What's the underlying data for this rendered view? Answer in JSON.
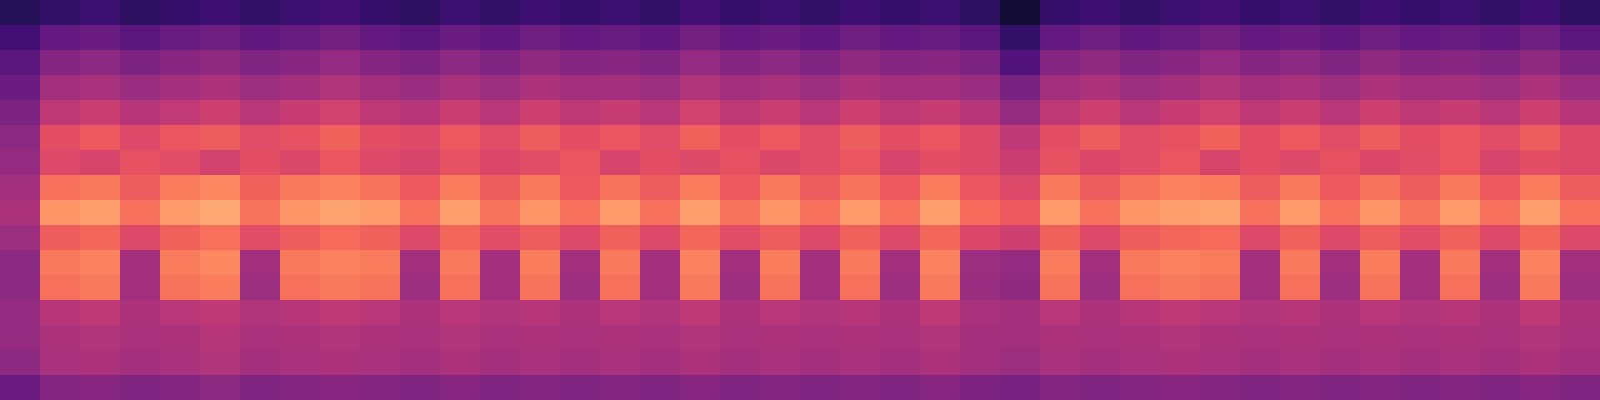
{
  "chart_data": {
    "type": "heatmap",
    "color": "magma",
    "tick_labels": false,
    "zlim": [
      0,
      100
    ],
    "cells": [
      [
        15,
        18,
        20,
        17,
        19,
        21,
        18,
        20,
        22,
        19,
        17,
        20,
        18,
        21,
        19,
        20,
        18,
        22,
        19,
        20,
        18,
        21,
        19,
        20,
        17,
        10,
        19,
        21,
        18,
        20,
        22,
        19,
        20,
        18,
        21,
        19,
        20,
        18,
        21,
        17
      ],
      [
        22,
        30,
        32,
        28,
        31,
        33,
        29,
        31,
        34,
        30,
        28,
        32,
        29,
        33,
        30,
        31,
        29,
        34,
        30,
        32,
        29,
        33,
        30,
        31,
        28,
        18,
        30,
        33,
        29,
        31,
        34,
        30,
        32,
        29,
        33,
        30,
        31,
        29,
        33,
        28
      ],
      [
        28,
        38,
        40,
        36,
        39,
        41,
        37,
        39,
        42,
        38,
        36,
        40,
        37,
        41,
        38,
        39,
        37,
        42,
        38,
        40,
        37,
        41,
        38,
        39,
        36,
        26,
        38,
        41,
        37,
        39,
        42,
        38,
        40,
        37,
        41,
        38,
        39,
        37,
        41,
        36
      ],
      [
        32,
        45,
        47,
        43,
        46,
        48,
        44,
        46,
        49,
        45,
        43,
        47,
        44,
        48,
        45,
        46,
        44,
        49,
        45,
        47,
        44,
        48,
        45,
        46,
        43,
        35,
        45,
        48,
        44,
        46,
        49,
        45,
        47,
        44,
        48,
        45,
        46,
        44,
        48,
        43
      ],
      [
        36,
        52,
        55,
        50,
        53,
        56,
        51,
        54,
        57,
        52,
        50,
        55,
        51,
        56,
        52,
        54,
        51,
        57,
        52,
        55,
        51,
        56,
        52,
        54,
        50,
        42,
        52,
        56,
        51,
        54,
        57,
        52,
        55,
        51,
        56,
        52,
        54,
        51,
        56,
        50
      ],
      [
        40,
        62,
        65,
        60,
        64,
        66,
        61,
        63,
        67,
        62,
        60,
        65,
        61,
        66,
        62,
        64,
        61,
        67,
        62,
        65,
        61,
        66,
        62,
        64,
        60,
        52,
        62,
        66,
        61,
        63,
        67,
        62,
        65,
        61,
        66,
        62,
        64,
        61,
        66,
        60
      ],
      [
        42,
        60,
        58,
        63,
        61,
        57,
        62,
        59,
        64,
        60,
        58,
        63,
        59,
        61,
        64,
        58,
        62,
        60,
        63,
        59,
        61,
        64,
        58,
        62,
        60,
        55,
        63,
        59,
        61,
        64,
        58,
        62,
        60,
        63,
        59,
        61,
        64,
        58,
        62,
        60
      ],
      [
        45,
        70,
        72,
        66,
        73,
        75,
        67,
        72,
        74,
        71,
        65,
        73,
        66,
        72,
        65,
        71,
        66,
        73,
        65,
        72,
        66,
        71,
        65,
        73,
        64,
        60,
        72,
        66,
        71,
        74,
        73,
        66,
        72,
        65,
        71,
        66,
        72,
        65,
        73,
        66
      ],
      [
        48,
        78,
        80,
        70,
        79,
        82,
        71,
        78,
        81,
        79,
        70,
        80,
        71,
        78,
        70,
        79,
        70,
        80,
        71,
        78,
        70,
        79,
        70,
        80,
        69,
        65,
        79,
        70,
        78,
        80,
        81,
        70,
        79,
        70,
        78,
        71,
        79,
        70,
        80,
        70
      ],
      [
        44,
        66,
        68,
        60,
        67,
        70,
        61,
        66,
        69,
        67,
        60,
        68,
        61,
        66,
        60,
        67,
        60,
        68,
        61,
        66,
        60,
        67,
        60,
        68,
        59,
        56,
        67,
        60,
        66,
        68,
        69,
        60,
        67,
        60,
        66,
        61,
        67,
        60,
        68,
        60
      ],
      [
        40,
        72,
        74,
        46,
        73,
        75,
        45,
        72,
        74,
        73,
        45,
        72,
        46,
        73,
        45,
        72,
        46,
        74,
        45,
        73,
        46,
        72,
        45,
        74,
        44,
        42,
        73,
        45,
        72,
        74,
        73,
        46,
        72,
        45,
        73,
        46,
        72,
        45,
        74,
        45
      ],
      [
        40,
        70,
        72,
        45,
        71,
        73,
        44,
        70,
        72,
        71,
        44,
        70,
        45,
        71,
        44,
        70,
        45,
        72,
        44,
        71,
        45,
        70,
        44,
        72,
        43,
        41,
        71,
        44,
        70,
        72,
        71,
        45,
        70,
        44,
        71,
        45,
        70,
        44,
        72,
        44
      ],
      [
        42,
        50,
        52,
        48,
        51,
        52,
        49,
        50,
        52,
        51,
        48,
        51,
        49,
        50,
        48,
        51,
        49,
        52,
        48,
        51,
        49,
        50,
        48,
        52,
        47,
        46,
        51,
        48,
        50,
        52,
        51,
        49,
        50,
        48,
        51,
        49,
        50,
        48,
        52,
        48
      ],
      [
        42,
        48,
        49,
        47,
        48,
        50,
        47,
        48,
        49,
        48,
        47,
        49,
        47,
        48,
        47,
        48,
        47,
        49,
        47,
        48,
        47,
        48,
        47,
        49,
        46,
        45,
        48,
        47,
        48,
        49,
        48,
        47,
        48,
        47,
        48,
        47,
        48,
        47,
        49,
        47
      ],
      [
        40,
        47,
        48,
        46,
        47,
        49,
        46,
        47,
        48,
        47,
        46,
        48,
        46,
        47,
        46,
        47,
        46,
        48,
        46,
        47,
        46,
        47,
        46,
        48,
        45,
        44,
        47,
        46,
        47,
        48,
        47,
        46,
        47,
        46,
        47,
        46,
        47,
        46,
        48,
        46
      ],
      [
        32,
        38,
        39,
        37,
        38,
        40,
        37,
        38,
        39,
        38,
        37,
        39,
        37,
        38,
        37,
        38,
        37,
        39,
        37,
        38,
        37,
        38,
        37,
        39,
        36,
        35,
        38,
        37,
        38,
        39,
        38,
        37,
        38,
        37,
        38,
        37,
        38,
        37,
        39,
        37
      ]
    ]
  }
}
